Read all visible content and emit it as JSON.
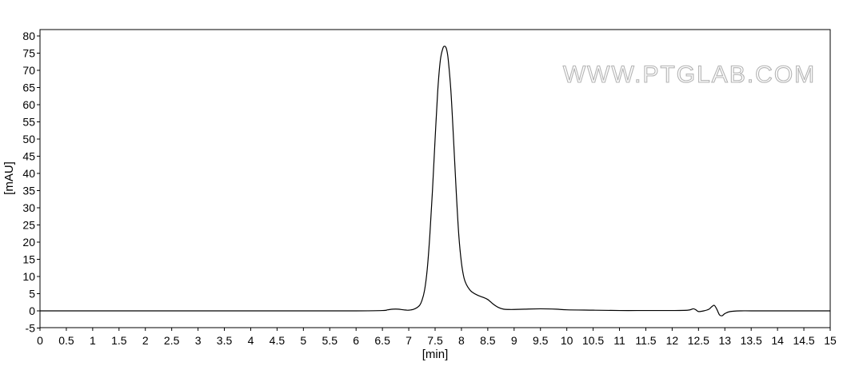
{
  "chart_data": {
    "type": "line",
    "xlabel": "[min]",
    "ylabel": "[mAU]",
    "xlim": [
      0,
      15
    ],
    "ylim": [
      -5,
      80
    ],
    "x_ticks": [
      0,
      0.5,
      1,
      1.5,
      2,
      2.5,
      3,
      3.5,
      4,
      4.5,
      5,
      5.5,
      6,
      6.5,
      7,
      7.5,
      8,
      8.5,
      9,
      9.5,
      10,
      10.5,
      11,
      11.5,
      12,
      12.5,
      13,
      13.5,
      14,
      14.5,
      15
    ],
    "y_ticks": [
      -5,
      0,
      5,
      10,
      15,
      20,
      25,
      30,
      35,
      40,
      45,
      50,
      55,
      60,
      65,
      70,
      75,
      80
    ],
    "grid": false,
    "line_color": "#000000",
    "series": [
      {
        "x": [
          0,
          1,
          2,
          3,
          4,
          5,
          6,
          6.5,
          6.6,
          6.7,
          6.8,
          6.9,
          7.0,
          7.1,
          7.2,
          7.25,
          7.3,
          7.35,
          7.4,
          7.45,
          7.5,
          7.55,
          7.6,
          7.65,
          7.68,
          7.7,
          7.72,
          7.75,
          7.8,
          7.85,
          7.9,
          7.95,
          8.0,
          8.05,
          8.1,
          8.15,
          8.2,
          8.3,
          8.4,
          8.5,
          8.6,
          8.7,
          8.8,
          8.9,
          9.0,
          9.2,
          9.5,
          9.8,
          10.0,
          10.5,
          11.0,
          11.5,
          12.0,
          12.3,
          12.4,
          12.45,
          12.5,
          12.6,
          12.7,
          12.75,
          12.8,
          12.85,
          12.9,
          12.95,
          13.0,
          13.1,
          13.3,
          13.5,
          14,
          14.5,
          15
        ],
        "y": [
          0,
          0,
          0,
          0,
          0,
          0,
          0,
          0.1,
          0.3,
          0.5,
          0.5,
          0.3,
          0.2,
          0.5,
          1.5,
          3,
          6,
          12,
          22,
          35,
          50,
          64,
          73,
          76.5,
          77,
          76.8,
          76,
          73,
          64,
          50,
          35,
          22,
          14,
          9.5,
          7.5,
          6.3,
          5.5,
          4.6,
          4.0,
          3.3,
          2.0,
          1.0,
          0.5,
          0.4,
          0.4,
          0.5,
          0.6,
          0.5,
          0.3,
          0.2,
          0.1,
          0.1,
          0.1,
          0.2,
          0.6,
          0.3,
          -0.2,
          0.0,
          0.5,
          1.2,
          1.6,
          0.4,
          -1.2,
          -1.4,
          -0.8,
          -0.2,
          0,
          0,
          0,
          0,
          0
        ]
      }
    ]
  },
  "watermark": "WWW.PTGLAB.COM"
}
